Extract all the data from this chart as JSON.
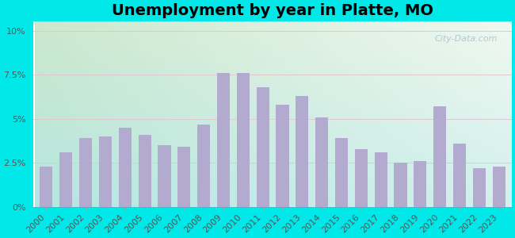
{
  "title": "Unemployment by year in Platte, MO",
  "years": [
    2000,
    2001,
    2002,
    2003,
    2004,
    2005,
    2006,
    2007,
    2008,
    2009,
    2010,
    2011,
    2012,
    2013,
    2014,
    2015,
    2016,
    2017,
    2018,
    2019,
    2020,
    2021,
    2022,
    2023
  ],
  "values": [
    2.3,
    3.1,
    3.9,
    4.0,
    4.5,
    4.1,
    3.5,
    3.4,
    4.7,
    7.6,
    7.6,
    6.8,
    5.8,
    6.3,
    5.1,
    3.9,
    3.3,
    3.1,
    2.5,
    2.6,
    5.7,
    3.6,
    2.2,
    2.3
  ],
  "bar_color": "#b3aad0",
  "background_outer": "#00e8e8",
  "yticks": [
    0,
    2.5,
    5.0,
    7.5,
    10.0
  ],
  "ytick_labels": [
    "0%",
    "2.5%",
    "5%",
    "7.5%",
    "10%"
  ],
  "ylim": [
    0,
    10.5
  ],
  "watermark": "City-Data.com",
  "title_fontsize": 14,
  "tick_fontsize": 8,
  "grad_top_left": "#cce8cc",
  "grad_bottom": "#c0eae8"
}
